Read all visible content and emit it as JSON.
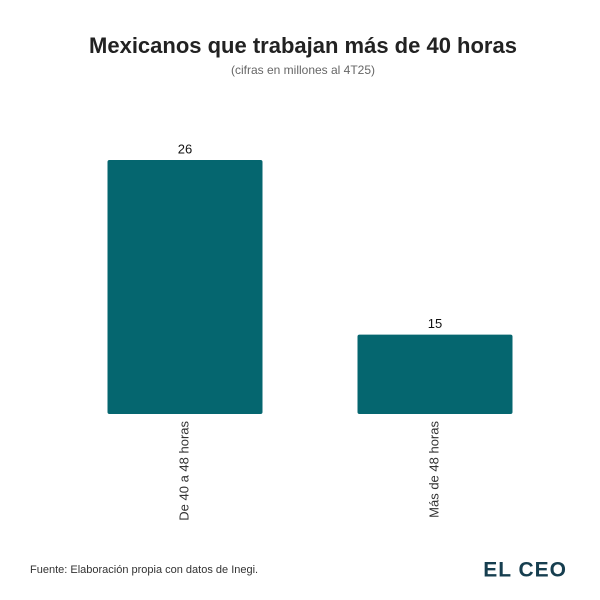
{
  "chart_data": {
    "type": "bar",
    "title": "Mexicanos que trabajan más de 40 horas",
    "subtitle": "(cifras en millones al 4T25)",
    "categories": [
      "De 40 a 48 horas",
      "Más de 48 horas"
    ],
    "values": [
      26,
      15
    ],
    "color": "#05666f",
    "ylim": [
      10,
      26
    ],
    "source": "Fuente: Elaboración propia con datos de Inegi.",
    "logo": "EL CEO"
  }
}
